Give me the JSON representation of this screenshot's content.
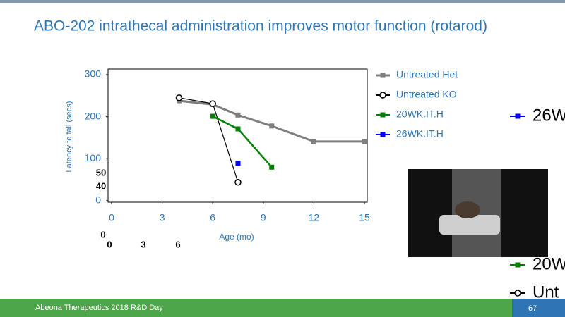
{
  "title": "ABO-202 intrathecal administration improves motor function (rotarod)",
  "footer": "Abeona Therapeutics 2018 R&D Day",
  "page_number": "67",
  "chart_data": {
    "type": "line",
    "x_label": "Age (mo)",
    "y_label": "Latency to fall (secs)",
    "xlim": [
      0,
      15
    ],
    "xticks": [
      0,
      3,
      6,
      9,
      12,
      15
    ],
    "ylim": [
      0,
      300
    ],
    "yticks": [
      0,
      100,
      200,
      300
    ],
    "series": [
      {
        "name": "Untreated Het",
        "color": "#7f7f7f",
        "marker": "square",
        "x": [
          4,
          6,
          7.5,
          9.5,
          12,
          15
        ],
        "values": [
          238,
          229,
          204,
          178,
          141,
          141
        ]
      },
      {
        "name": "Untreated KO",
        "color": "#000000",
        "marker": "circle",
        "x": [
          4,
          6,
          7.5
        ],
        "values": [
          245,
          231,
          44
        ]
      },
      {
        "name": "20WK.IT.H",
        "color": "#008000",
        "marker": "square",
        "x": [
          6,
          7.5,
          9.5
        ],
        "values": [
          201,
          171,
          80
        ]
      },
      {
        "name": "26WK.IT.H",
        "color": "#0000ff",
        "marker": "square",
        "x": [
          7.5
        ],
        "values": [
          89
        ]
      }
    ]
  },
  "clipped_legend": [
    "26W",
    "20W",
    "Unt"
  ],
  "background_fragments": [
    "50",
    "40",
    "0",
    "0",
    "3",
    "6"
  ]
}
